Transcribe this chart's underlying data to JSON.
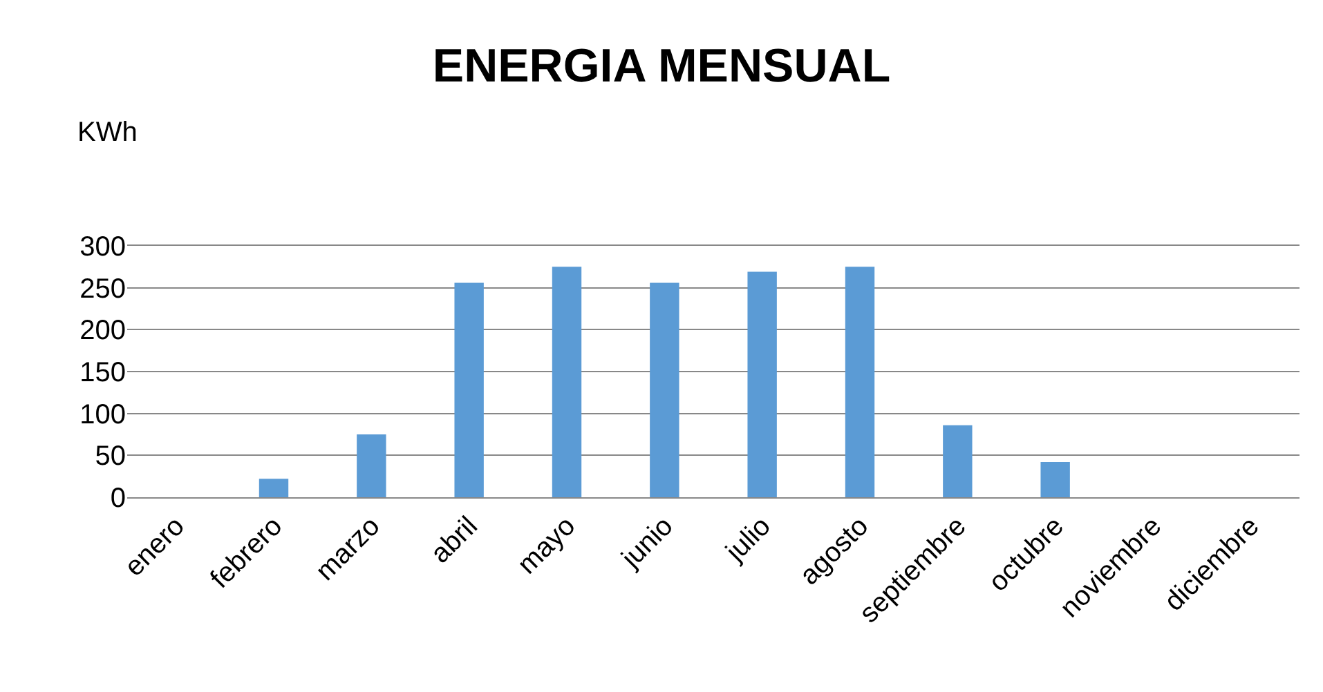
{
  "chart_data": {
    "type": "bar",
    "title": "ENERGIA MENSUAL",
    "ylabel": "KWh",
    "categories": [
      "enero",
      "febrero",
      "marzo",
      "abril",
      "mayo",
      "junio",
      "julio",
      "agosto",
      "septiembre",
      "octubre",
      "noviembre",
      "diciembre"
    ],
    "values": [
      0,
      22,
      75,
      256,
      275,
      256,
      269,
      275,
      86,
      42,
      0,
      0
    ],
    "color": "#5b9bd5",
    "ylim": [
      0,
      300
    ],
    "yticks": [
      0,
      50,
      100,
      150,
      200,
      250,
      300
    ],
    "grid": "y"
  }
}
